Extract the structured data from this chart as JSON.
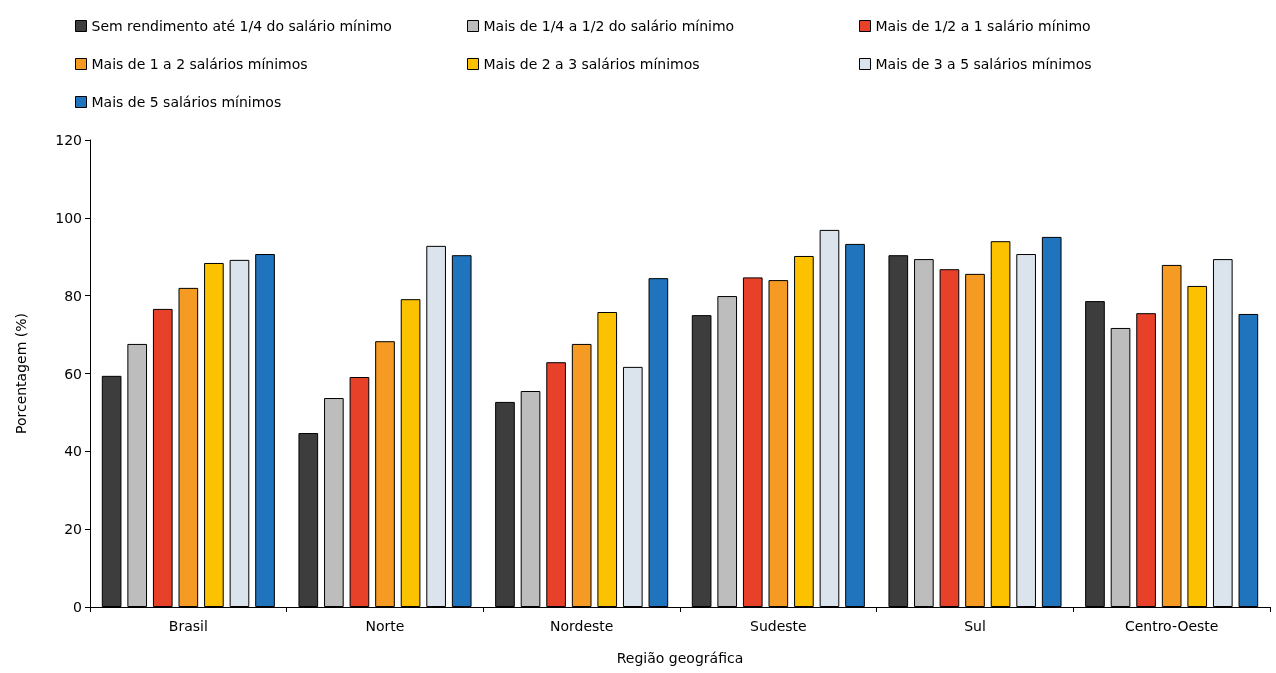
{
  "chart_data": {
    "type": "bar",
    "xlabel": "Região geográfica",
    "ylabel": "Porcentagem (%)",
    "categories": [
      "Brasil",
      "Norte",
      "Nordeste",
      "Sudeste",
      "Sul",
      "Centro-Oeste"
    ],
    "series": [
      {
        "name": "Sem rendimento até 1/4 do salário mínimo",
        "color": "#3d3d3d",
        "values": [
          59.4,
          44.7,
          52.7,
          75.0,
          90.4,
          78.6
        ]
      },
      {
        "name": "Mais de 1/4 a 1/2 do salário mínimo",
        "color": "#bdbdbd",
        "values": [
          67.6,
          53.7,
          55.5,
          79.9,
          89.4,
          71.7
        ]
      },
      {
        "name": "Mais de 1/2 a 1 salário mínimo",
        "color": "#e8412a",
        "values": [
          76.6,
          59.1,
          62.9,
          84.7,
          86.8,
          75.5
        ]
      },
      {
        "name": "Mais de 1 a 2 salários mínimos",
        "color": "#f59a23",
        "values": [
          82.0,
          68.3,
          67.6,
          84.0,
          85.6,
          87.9
        ]
      },
      {
        "name": "Mais de 2 a 3 salários mínimos",
        "color": "#fcc200",
        "values": [
          88.4,
          79.1,
          75.8,
          90.2,
          94.0,
          82.5
        ]
      },
      {
        "name": "Mais de 3 a 5 salários mínimos",
        "color": "#dbe3ec",
        "values": [
          89.2,
          92.8,
          61.7,
          96.9,
          90.7,
          89.4
        ]
      },
      {
        "name": "Mais de 5 salários mínimos",
        "color": "#1f74bd",
        "values": [
          90.7,
          90.4,
          84.5,
          93.3,
          95.1,
          75.3
        ]
      }
    ],
    "ylim": [
      0,
      120
    ],
    "yticks": [
      0,
      20,
      40,
      60,
      80,
      100,
      120
    ],
    "grid": false,
    "legend": "top"
  }
}
